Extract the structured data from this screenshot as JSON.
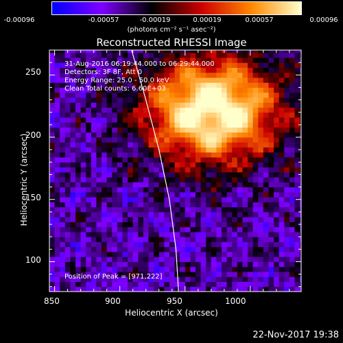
{
  "colorbar": {
    "tick_labels": [
      "-0.00096",
      "-0.00057",
      "-0.00019",
      "0.00019",
      "0.00057",
      "0.00096"
    ],
    "units": "(photons cm⁻² s⁻¹ asec⁻²)",
    "colors": [
      "#0000ff",
      "#7f00ff",
      "#000000",
      "#cc0000",
      "#ff8800",
      "#ffffcc"
    ]
  },
  "chart_data": {
    "type": "heatmap",
    "title": "Reconstructed RHESSI Image",
    "xlabel": "Heliocentric X (arcsec)",
    "ylabel": "Heliocentric Y (arcsec)",
    "xlim": [
      846,
      1039
    ],
    "ylim": [
      76,
      270
    ],
    "x_ticks": [
      "850",
      "900",
      "950",
      "1000"
    ],
    "y_ticks": [
      "100",
      "150",
      "200",
      "250"
    ],
    "annotations": [
      "31-Aug-2016 06:19:44.000 to 06:29:44.000",
      "Detectors: 3F 8F, Att 0",
      "Energy Range: 25.0 - 50.0 keV",
      "Clean    Total counts: 6.60E+03"
    ],
    "peak_label": "Position of Peak = [971,222]",
    "peak": [
      971,
      222
    ],
    "limb_curve": [
      [
        909,
        270
      ],
      [
        920,
        230
      ],
      [
        930,
        190
      ],
      [
        938,
        150
      ],
      [
        943,
        110
      ],
      [
        945,
        76
      ]
    ]
  },
  "footer": {
    "date": "22-Nov-2017 19:38"
  }
}
